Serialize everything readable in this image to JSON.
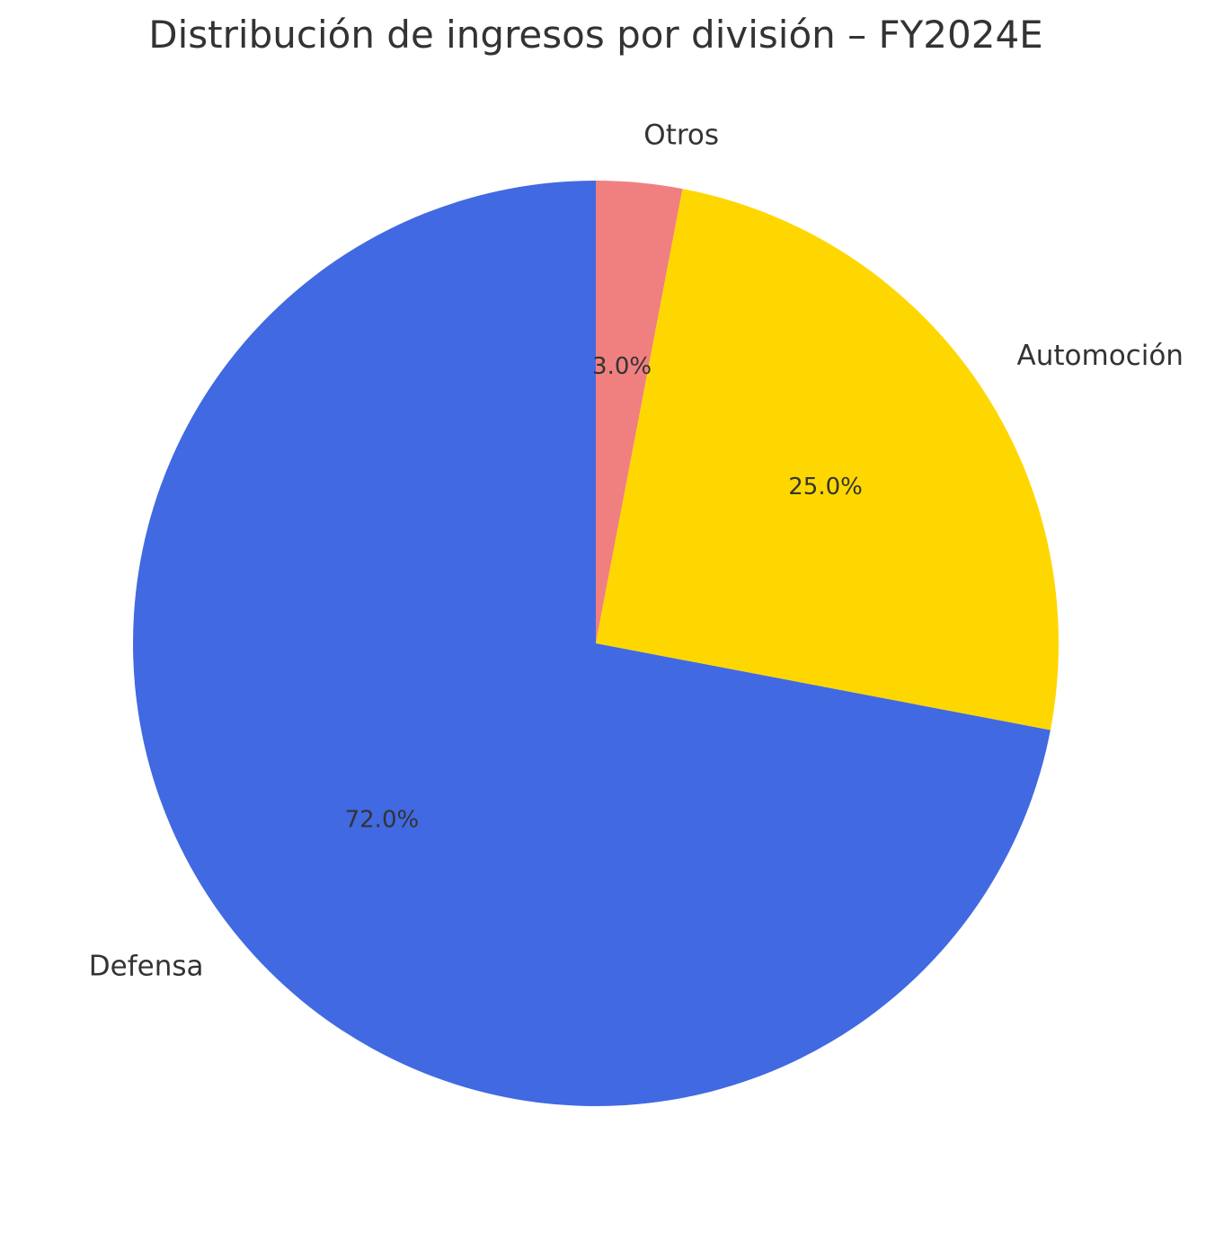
{
  "chart_data": {
    "type": "pie",
    "title": "Distribución de ingresos por división – FY2024E",
    "start_angle_deg": 90,
    "direction": "clockwise",
    "slices": [
      {
        "label": "Otros",
        "value": 3.0,
        "pct_label": "3.0%",
        "color": "#F08080"
      },
      {
        "label": "Automoción",
        "value": 25.0,
        "pct_label": "25.0%",
        "color": "#FFD700"
      },
      {
        "label": "Defensa",
        "value": 72.0,
        "pct_label": "72.0%",
        "color": "#4169E1"
      }
    ],
    "legend": "none"
  }
}
